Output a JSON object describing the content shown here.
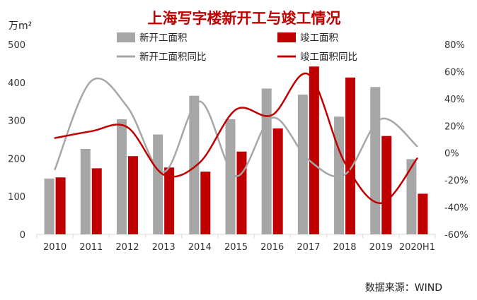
{
  "chart_data": {
    "type": "bar",
    "title": "上海写字楼新开工与竣工情况",
    "y_left_unit": "万m²",
    "categories": [
      "2010",
      "2011",
      "2012",
      "2013",
      "2014",
      "2015",
      "2016",
      "2017",
      "2018",
      "2019",
      "2020H1"
    ],
    "ylim_left": [
      0,
      500
    ],
    "yticks_left": [
      "0",
      "100",
      "200",
      "300",
      "400",
      "500"
    ],
    "ylim_right": [
      -60,
      80
    ],
    "yticks_right": [
      "-60%",
      "-40%",
      "-20%",
      "0%",
      "20%",
      "40%",
      "60%",
      "80%"
    ],
    "series": [
      {
        "name": "新开工面积",
        "type": "bar",
        "axis": "left",
        "color": "#a6a6a6",
        "values": [
          147,
          225,
          303,
          263,
          365,
          303,
          384,
          368,
          310,
          388,
          198
        ]
      },
      {
        "name": "竣工面积",
        "type": "bar",
        "axis": "left",
        "color": "#c00000",
        "values": [
          150,
          174,
          206,
          176,
          165,
          218,
          279,
          442,
          413,
          259,
          107
        ]
      },
      {
        "name": "新开工面积同比",
        "type": "line",
        "axis": "right",
        "color": "#a6a6a6",
        "unit": "%",
        "values": [
          -12,
          53,
          34,
          -14,
          38,
          -17,
          26,
          -5,
          -16,
          25,
          5
        ]
      },
      {
        "name": "竣工面积同比",
        "type": "line",
        "axis": "right",
        "color": "#c00000",
        "unit": "%",
        "values": [
          11,
          16,
          19,
          -16,
          -7,
          32,
          28,
          58,
          -7,
          -37,
          -4
        ]
      }
    ],
    "legend_position": "top",
    "grid": false
  },
  "source": "数据来源：WIND"
}
